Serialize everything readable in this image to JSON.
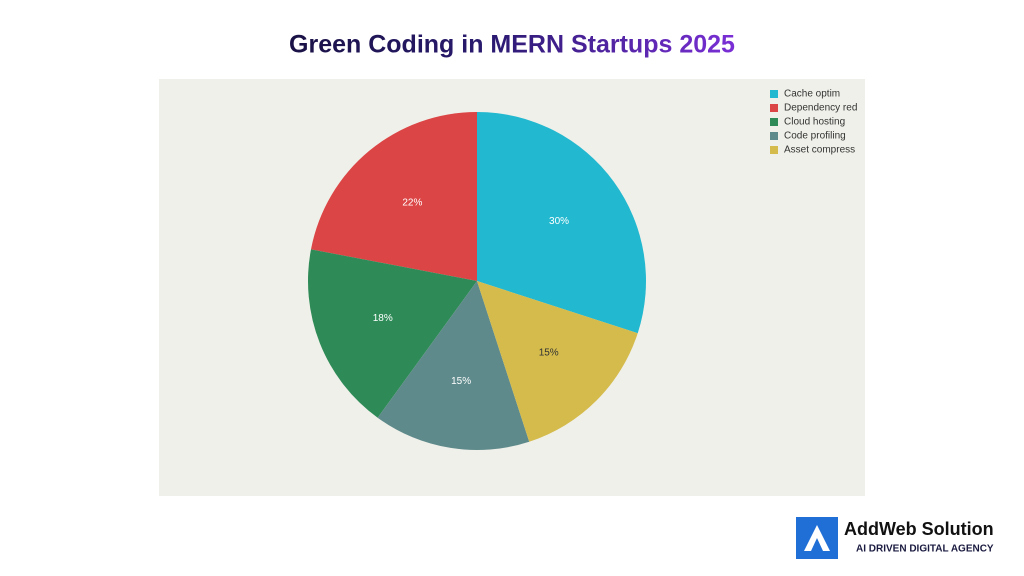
{
  "chart_data": {
    "type": "pie",
    "title": "Green Coding in MERN Startups 2025",
    "categories": [
      "Cache optim",
      "Dependency red",
      "Cloud hosting",
      "Code profiling",
      "Asset compress"
    ],
    "values": [
      30,
      22,
      18,
      15,
      15
    ],
    "value_labels": [
      "30%",
      "22%",
      "18%",
      "15%",
      "15%"
    ],
    "colors": [
      "#22b8cf",
      "#dc4545",
      "#2e8b57",
      "#5f8a8b",
      "#d4bb4c"
    ],
    "legend": "top-right"
  },
  "branding": {
    "name": "AddWeb Solution",
    "tagline": "AI DRIVEN DIGITAL AGENCY"
  }
}
